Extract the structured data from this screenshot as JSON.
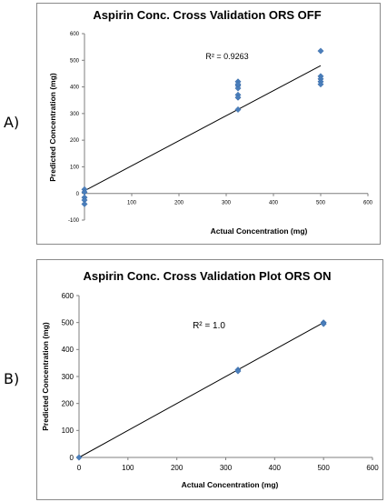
{
  "panels": [
    {
      "letter": "A)"
    },
    {
      "letter": "B)"
    }
  ],
  "chart_data": [
    {
      "type": "scatter",
      "title": "Aspirin Conc. Cross Validation ORS OFF",
      "xlabel": "Actual Concentration (mg)",
      "ylabel": "Predicted Concentration (mg)",
      "xlim": [
        0,
        600
      ],
      "ylim": [
        -100,
        600
      ],
      "xticks": [
        100,
        200,
        300,
        400,
        500,
        600
      ],
      "yticks": [
        -100,
        0,
        100,
        200,
        300,
        400,
        500,
        600
      ],
      "points_x": [
        0,
        0,
        0,
        0,
        0,
        325,
        325,
        325,
        325,
        325,
        325,
        325,
        500,
        500,
        500,
        500,
        500
      ],
      "points_y": [
        15,
        5,
        -15,
        -25,
        -40,
        420,
        405,
        395,
        370,
        360,
        315,
        410,
        535,
        440,
        430,
        420,
        410
      ],
      "trendline": [
        [
          0,
          10
        ],
        [
          500,
          480
        ]
      ],
      "annotation": "R² = 0.9263",
      "marker_color": "#4a7ebb",
      "grid": false
    },
    {
      "type": "scatter",
      "title": "Aspirin Conc. Cross Validation Plot ORS ON",
      "xlabel": "Actual Concentration (mg)",
      "ylabel": "Predicted Concentration (mg)",
      "xlim": [
        0,
        600
      ],
      "ylim": [
        0,
        600
      ],
      "xticks": [
        0,
        100,
        200,
        300,
        400,
        500,
        600
      ],
      "yticks": [
        0,
        100,
        200,
        300,
        400,
        500,
        600
      ],
      "points_x": [
        0,
        325,
        325,
        500,
        500
      ],
      "points_y": [
        0,
        325,
        320,
        500,
        495
      ],
      "trendline": [
        [
          0,
          0
        ],
        [
          500,
          500
        ]
      ],
      "annotation": "R² = 1.0",
      "marker_color": "#4a7ebb",
      "grid": false
    }
  ]
}
